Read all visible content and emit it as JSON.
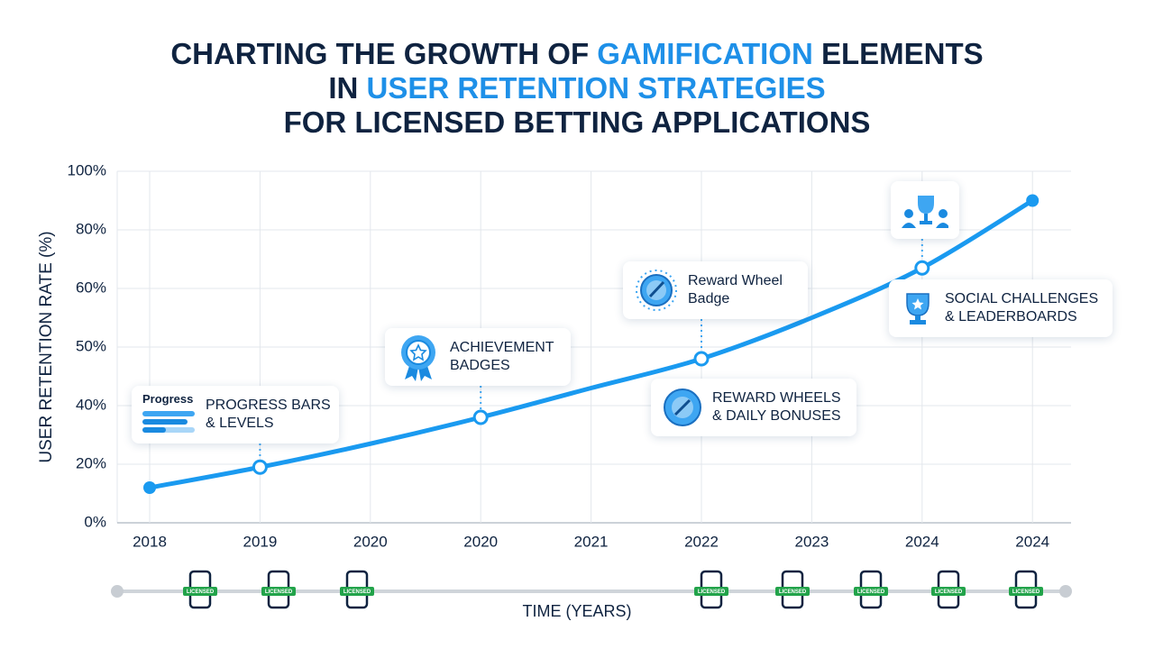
{
  "chart_data": {
    "type": "line",
    "title_lines": [
      [
        {
          "text": "CHARTING THE GROWTH OF ",
          "accent": false
        },
        {
          "text": "GAMIFICATION",
          "accent": true
        },
        {
          "text": " ELEMENTS",
          "accent": false
        }
      ],
      [
        {
          "text": "IN ",
          "accent": false
        },
        {
          "text": "USER RETENTION STRATEGIES",
          "accent": true
        }
      ],
      [
        {
          "text": "FOR LICENSED BETTING APPLICATIONS",
          "accent": false
        }
      ]
    ],
    "title_color": "#0f2340",
    "accent_color": "#1e90e8",
    "y_label": "USER RETENTION RATE (%)",
    "x_label": "TIME (YEARS)",
    "categories": [
      "2018",
      "2019",
      "2020",
      "2020",
      "2021",
      "2022",
      "2023",
      "2024",
      "2024"
    ],
    "series": [
      {
        "name": "User retention rate",
        "color": "#1a9af0",
        "values": [
          12,
          19,
          27,
          36,
          43,
          48,
          55,
          67,
          90
        ]
      }
    ],
    "ylim": [
      0,
      100
    ],
    "yticks": [
      {
        "value": 0,
        "label": "0%"
      },
      {
        "value": 20,
        "label": "20%"
      },
      {
        "value": 40,
        "label": "40%"
      },
      {
        "value": 50,
        "label": "50%"
      },
      {
        "value": 60,
        "label": "60%"
      },
      {
        "value": 80,
        "label": "80%"
      },
      {
        "value": 100,
        "label": "100%"
      }
    ],
    "grid": true,
    "annotations": {
      "progress": {
        "icon_text": "Progress",
        "text": [
          "PROGRESS BARS",
          "& LEVELS"
        ]
      },
      "achievement": {
        "text": [
          "ACHIEVEMENT",
          "BADGES"
        ]
      },
      "wheel_badge": {
        "text": [
          "Reward Wheel",
          "Badge"
        ]
      },
      "wheels": {
        "text": [
          "REWARD WHEELS",
          "& DAILY BONUSES"
        ]
      },
      "social": {
        "text": [
          "SOCIAL CHALLENGES",
          "& LEADERBOARDS"
        ]
      }
    },
    "timeline_badge": "LICENSED"
  }
}
